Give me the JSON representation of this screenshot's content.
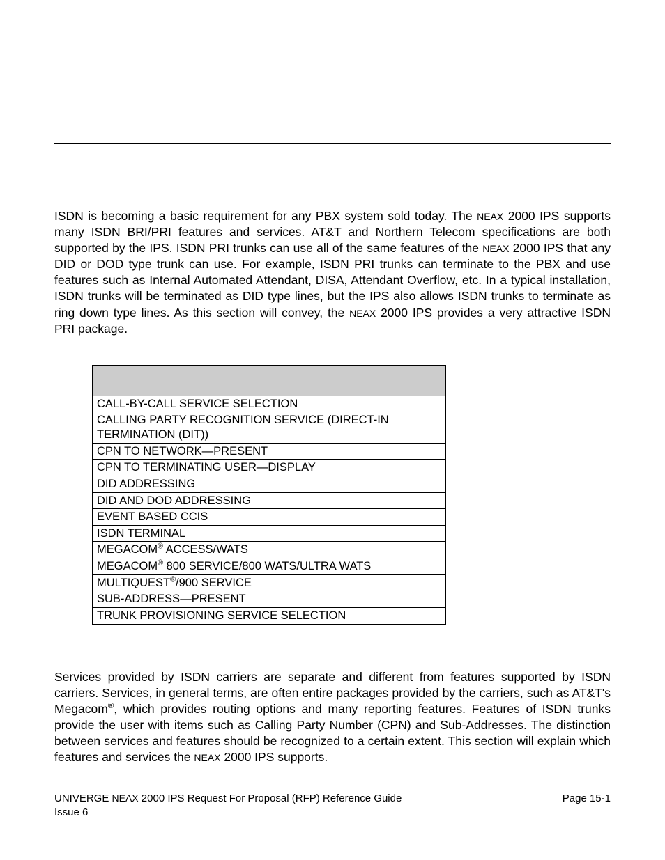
{
  "paragraph1_html": "ISDN is becoming a basic requirement for any PBX system sold today. The <span class=\"smallcaps\">NEAX</span> 2000 IPS supports many ISDN BRI/PRI features and services. AT&amp;T and Northern Telecom specifications are both supported by the IPS. ISDN PRI trunks can use all of the same features of the <span class=\"smallcaps\">NEAX</span> 2000 IPS that any DID or DOD type trunk can use. For example, ISDN PRI trunks can terminate to the PBX and use features such as Internal Automated Attendant, DISA, Attendant Overflow, etc. In a typical installation, ISDN trunks will be terminated as DID type lines, but the IPS also allows ISDN trunks to terminate as ring down type lines. As this section will convey, the <span class=\"smallcaps\">NEAX</span> 2000 IPS provides a very attractive ISDN PRI package.",
  "paragraph2_html": "Services provided by ISDN carriers are separate and different from features supported by ISDN carriers. Services, in general terms, are often entire packages provided by the carriers, such as AT&amp;T's Megacom<sup>®</sup>, which provides routing options and many reporting features. Features of ISDN trunks provide the user with items such as Calling Party Number (CPN) and Sub-Addresses. The distinction between services and features should be recognized to a certain extent. This section will explain which features and services the <span class=\"smallcaps\">NEAX</span> 2000 IPS supports.",
  "table": {
    "rows": [
      "CALL-BY-CALL SERVICE SELECTION",
      "CALLING PARTY RECOGNITION SERVICE (DIRECT-IN TERMINATION (DIT))",
      "CPN TO NETWORK—PRESENT",
      "CPN TO TERMINATING USER—DISPLAY",
      "DID ADDRESSING",
      "DID AND DOD ADDRESSING",
      "EVENT BASED CCIS",
      "ISDN TERMINAL",
      "MEGACOM<sup>®</sup> ACCESS/WATS",
      "MEGACOM<sup>®</sup> 800 SERVICE/800 WATS/ULTRA WATS",
      "MULTIQUEST<sup>®</sup>/900 SERVICE",
      "SUB-ADDRESS—PRESENT",
      "TRUNK PROVISIONING SERVICE SELECTION"
    ]
  },
  "footer": {
    "left_line1_html": "UNIVERGE <span class=\"smallcaps\">NEAX</span> 2000 IPS Request For Proposal (RFP) Reference Guide",
    "left_line2": "Issue 6",
    "right": "Page 15-1"
  }
}
